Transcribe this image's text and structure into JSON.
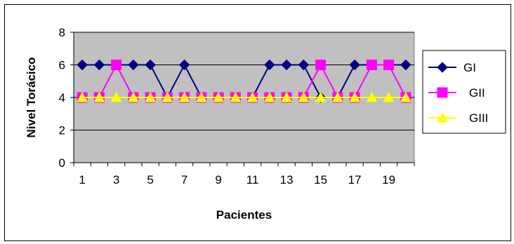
{
  "chart_data": {
    "type": "line",
    "xlabel": "Pacientes",
    "ylabel": "Nivel Torácico",
    "ylim": [
      0,
      8
    ],
    "yticks": [
      "0",
      "2",
      "4",
      "6",
      "8"
    ],
    "x": [
      1,
      2,
      3,
      4,
      5,
      6,
      7,
      8,
      9,
      10,
      11,
      12,
      13,
      14,
      15,
      16,
      17,
      18,
      19,
      20
    ],
    "xtick_labels": [
      "1",
      "3",
      "5",
      "7",
      "9",
      "11",
      "13",
      "15",
      "17",
      "19"
    ],
    "grid": true,
    "legend_position": "right",
    "plot_background": "#c0c0c0",
    "series": [
      {
        "name": "GI",
        "color": "#000080",
        "marker": "diamond",
        "values": [
          6,
          6,
          6,
          6,
          6,
          4,
          6,
          4,
          4,
          4,
          4,
          6,
          6,
          6,
          4,
          4,
          6,
          6,
          6,
          6
        ]
      },
      {
        "name": "GII",
        "color": "#ff00ff",
        "marker": "square",
        "values": [
          4,
          4,
          6,
          4,
          4,
          4,
          4,
          4,
          4,
          4,
          4,
          4,
          4,
          4,
          6,
          4,
          4,
          6,
          6,
          4
        ]
      },
      {
        "name": "GIII",
        "color": "#ffff00",
        "marker": "triangle",
        "values": [
          4,
          4,
          4,
          4,
          4,
          4,
          4,
          4,
          4,
          4,
          4,
          4,
          4,
          4,
          4,
          4,
          4,
          4,
          4,
          4
        ]
      }
    ]
  }
}
